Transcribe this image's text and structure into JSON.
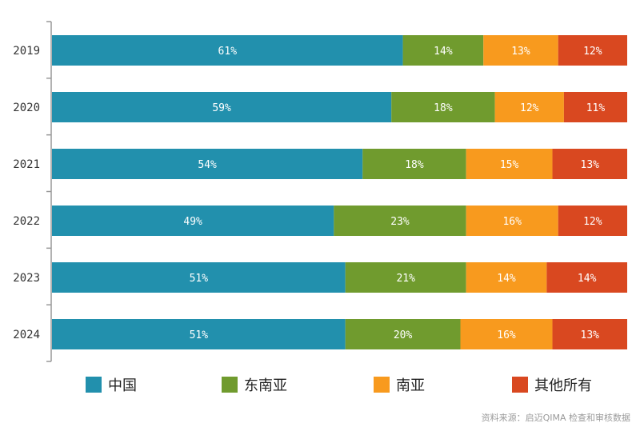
{
  "chart_data": {
    "type": "bar",
    "orientation": "horizontal",
    "stacked": true,
    "categories": [
      "2019",
      "2020",
      "2021",
      "2022",
      "2023",
      "2024"
    ],
    "series": [
      {
        "name": "中国",
        "color": "#2290ad",
        "values": [
          61,
          59,
          54,
          49,
          51,
          51
        ]
      },
      {
        "name": "东南亚",
        "color": "#709b2e",
        "values": [
          14,
          18,
          18,
          23,
          21,
          20
        ]
      },
      {
        "name": "南亚",
        "color": "#f89a1e",
        "values": [
          13,
          12,
          15,
          16,
          14,
          16
        ]
      },
      {
        "name": "其他所有",
        "color": "#d94820",
        "values": [
          12,
          11,
          13,
          12,
          14,
          13
        ]
      }
    ],
    "value_suffix": "%",
    "xlim": [
      0,
      100
    ],
    "grid": false,
    "legend_position": "bottom",
    "source": "资料来源：启迈QIMA 检查和审核数据"
  }
}
